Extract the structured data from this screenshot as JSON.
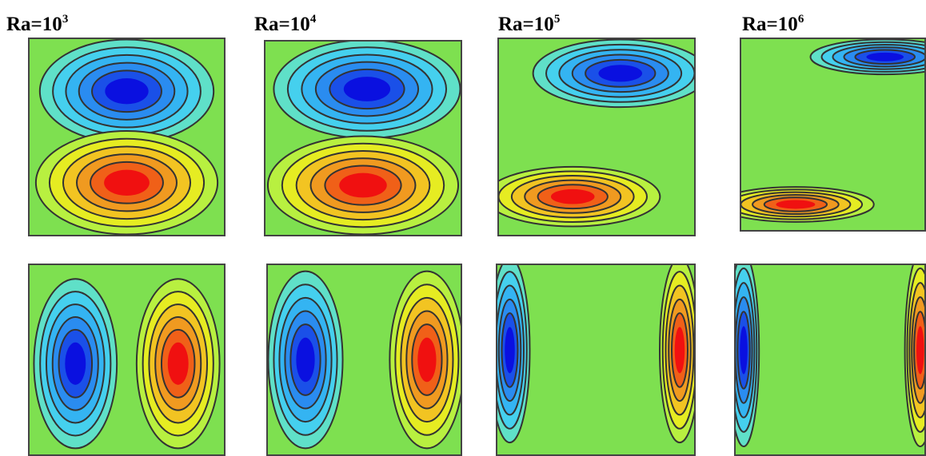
{
  "panels": [
    {
      "label": {
        "base": "Ra=10",
        "exponent": "3"
      }
    },
    {
      "label": {
        "base": "Ra=10",
        "exponent": "4"
      }
    },
    {
      "label": {
        "base": "Ra=10",
        "exponent": "5"
      }
    },
    {
      "label": {
        "base": "Ra=10",
        "exponent": "6"
      }
    }
  ]
}
